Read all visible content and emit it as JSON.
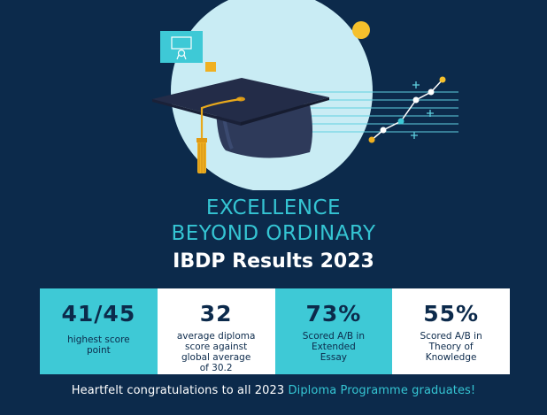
{
  "header": {
    "line1": "EXCELLENCE",
    "line2": "BEYOND ORDINARY",
    "line3": "IBDP Results 2023"
  },
  "stats": [
    {
      "value": "41/45",
      "label": "highest score\npoint"
    },
    {
      "value": "32",
      "label": "average diploma\nscore against\nglobal average\nof 30.2"
    },
    {
      "value": "73%",
      "label": "Scored A/B in\nExtended\nEssay"
    },
    {
      "value": "55%",
      "label": "Scored A/B in\nTheory of\nKnowledge"
    }
  ],
  "footer": {
    "text": "Heartfelt congratulations to all 2023 ",
    "highlight": "Diploma Programme graduates!"
  },
  "icons": [
    "certificate-icon",
    "graduation-cap-icon",
    "line-graph-icon"
  ],
  "colors": {
    "background": "#0c2a4b",
    "accent": "#35c5d3",
    "circle": "#c8ecf4",
    "yellow": "#f5c02c",
    "orange": "#f0b020"
  }
}
